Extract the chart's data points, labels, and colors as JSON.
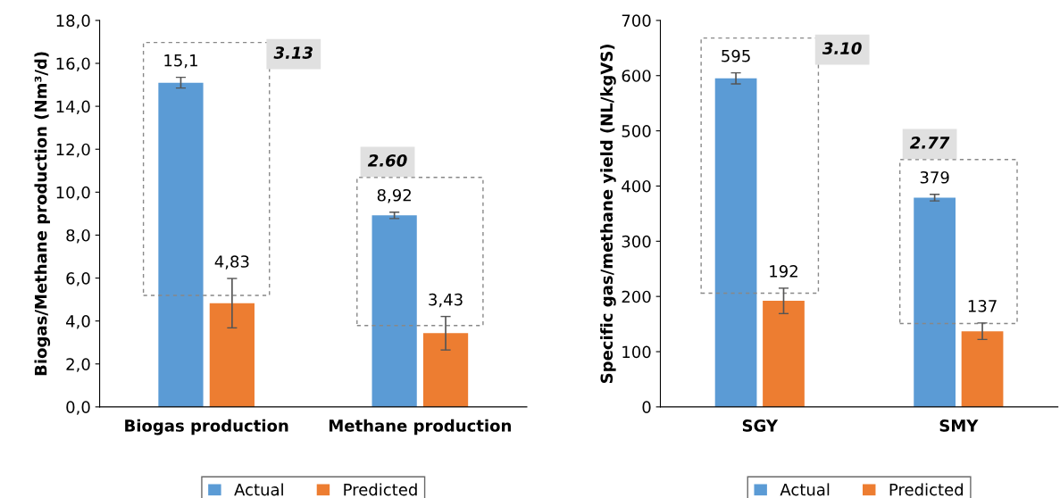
{
  "chart_data": [
    {
      "type": "bar",
      "ylabel": "Biogas/Methane production (Nm³/d)",
      "categories": [
        "Biogas production",
        "Methane production"
      ],
      "series": [
        {
          "name": "Actual",
          "color": "#5b9bd5",
          "values": [
            15.1,
            8.92
          ],
          "errors": [
            0.25,
            0.15
          ],
          "value_labels": [
            "15,1",
            "8,92"
          ]
        },
        {
          "name": "Predicted",
          "color": "#ed7d31",
          "values": [
            4.83,
            3.43
          ],
          "errors": [
            1.15,
            0.78
          ],
          "value_labels": [
            "4,83",
            "3,43"
          ]
        }
      ],
      "ylim": [
        0,
        18
      ],
      "yticks": [
        {
          "value": 0,
          "label": "0,0"
        },
        {
          "value": 2,
          "label": "2,0"
        },
        {
          "value": 4,
          "label": "4,0"
        },
        {
          "value": 6,
          "label": "6,0"
        },
        {
          "value": 8,
          "label": "8,0"
        },
        {
          "value": 10,
          "label": "10,0"
        },
        {
          "value": 12,
          "label": "12,0"
        },
        {
          "value": 14,
          "label": "14,0"
        },
        {
          "value": 16,
          "label": "16,0"
        },
        {
          "value": 18,
          "label": "18,0"
        }
      ],
      "annotations": [
        "3.13",
        "2.60"
      ],
      "legend": "bottom",
      "grid": false
    },
    {
      "type": "bar",
      "ylabel": "Specific gas/methane yield (NL/kgVS)",
      "categories": [
        "SGY",
        "SMY"
      ],
      "series": [
        {
          "name": "Actual",
          "color": "#5b9bd5",
          "values": [
            595,
            379
          ],
          "errors": [
            10,
            6
          ],
          "value_labels": [
            "595",
            "379"
          ]
        },
        {
          "name": "Predicted",
          "color": "#ed7d31",
          "values": [
            192,
            137
          ],
          "errors": [
            23,
            15
          ],
          "value_labels": [
            "192",
            "137"
          ]
        }
      ],
      "ylim": [
        0,
        700
      ],
      "yticks": [
        0,
        100,
        200,
        300,
        400,
        500,
        600,
        700
      ],
      "annotations": [
        "3.10",
        "2.77"
      ],
      "legend": "bottom",
      "grid": false
    }
  ]
}
